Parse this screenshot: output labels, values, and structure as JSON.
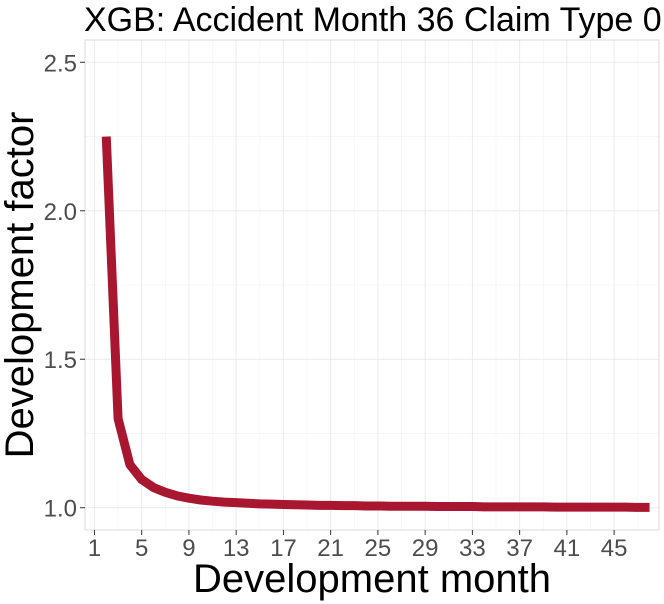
{
  "chart_data": {
    "type": "line",
    "title": "XGB: Accident Month 36 Claim Type 0",
    "xlabel": "Development month",
    "ylabel": "Development factor",
    "xlim": [
      0.2,
      48.8
    ],
    "ylim": [
      0.925,
      2.575
    ],
    "x_ticks": [
      1,
      5,
      9,
      13,
      17,
      21,
      25,
      29,
      33,
      37,
      41,
      45
    ],
    "y_ticks": [
      1.0,
      1.5,
      2.0,
      2.5
    ],
    "y_tick_labels": [
      "1.0",
      "1.5",
      "2.0",
      "2.5"
    ],
    "grid": true,
    "series": [
      {
        "color": "#a8172f",
        "x": [
          2,
          3,
          4,
          5,
          6,
          7,
          8,
          9,
          10,
          11,
          12,
          13,
          14,
          15,
          16,
          17,
          18,
          19,
          20,
          21,
          22,
          23,
          24,
          25,
          26,
          27,
          28,
          29,
          30,
          31,
          32,
          33,
          34,
          35,
          36,
          37,
          38,
          39,
          40,
          41,
          42,
          43,
          44,
          45,
          46,
          47,
          48
        ],
        "values": [
          2.25,
          1.3,
          1.145,
          1.095,
          1.068,
          1.052,
          1.04,
          1.032,
          1.026,
          1.022,
          1.019,
          1.017,
          1.015,
          1.013,
          1.012,
          1.011,
          1.01,
          1.009,
          1.008,
          1.008,
          1.007,
          1.007,
          1.006,
          1.006,
          1.005,
          1.005,
          1.005,
          1.005,
          1.004,
          1.004,
          1.004,
          1.004,
          1.003,
          1.003,
          1.003,
          1.003,
          1.003,
          1.003,
          1.002,
          1.002,
          1.002,
          1.002,
          1.002,
          1.002,
          1.002,
          1.001,
          1.001
        ]
      }
    ]
  }
}
